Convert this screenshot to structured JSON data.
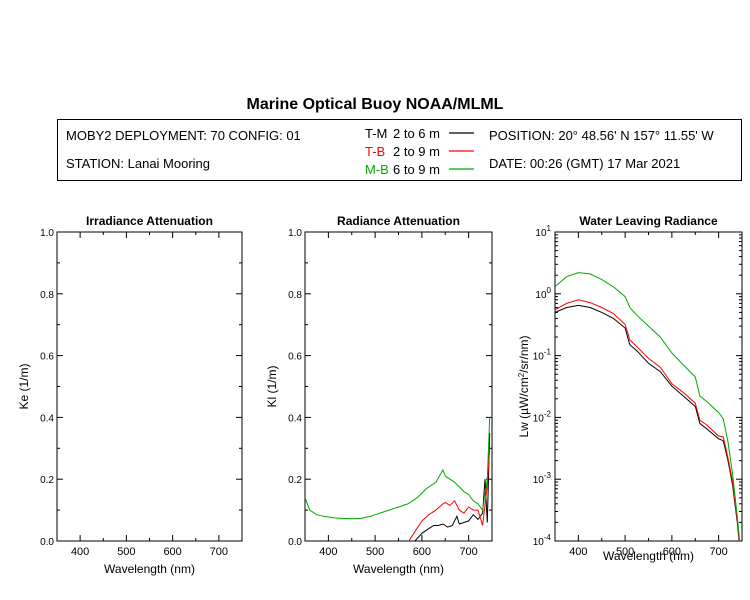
{
  "title": "Marine Optical Buoy NOAA/MLML",
  "info": {
    "deployment": "MOBY2 DEPLOYMENT: 70 CONFIG: 01",
    "station": "STATION: Lanai Mooring",
    "position": "POSITION: 20° 48.56' N   157° 11.55' W",
    "date": "DATE: 00:26 (GMT) 17 Mar 2021"
  },
  "legend": [
    {
      "label": "T-M",
      "range": "2 to 6  m",
      "color": "#000000"
    },
    {
      "label": "T-B",
      "range": "2 to 9  m",
      "color": "#ff0000"
    },
    {
      "label": "M-B",
      "range": "6 to 9  m",
      "color": "#00aa00"
    }
  ],
  "chart_data": [
    {
      "type": "line",
      "title": "Irradiance Attenuation",
      "xlabel": "Wavelength (nm)",
      "ylabel": "Ke  (1/m)",
      "xlim": [
        350,
        750
      ],
      "ylim": [
        0,
        1
      ],
      "xticks": [
        "400",
        "500",
        "600",
        "700"
      ],
      "yticks": [
        "0.0",
        "0.2",
        "0.4",
        "0.6",
        "0.8",
        "1.0"
      ],
      "series": []
    },
    {
      "type": "line",
      "title": "Radiance Attenuation",
      "xlabel": "Wavelength (nm)",
      "ylabel": "Kl  (1/m)",
      "xlim": [
        350,
        750
      ],
      "ylim": [
        0,
        1
      ],
      "xticks": [
        "400",
        "500",
        "600",
        "700"
      ],
      "yticks": [
        "0.0",
        "0.2",
        "0.4",
        "0.6",
        "0.8",
        "1.0"
      ],
      "series": [
        {
          "name": "T-M",
          "color": "#000000",
          "x": [
            585,
            600,
            615,
            625,
            635,
            645,
            650,
            655,
            665,
            675,
            680,
            690,
            700,
            710,
            720,
            730,
            735,
            740,
            745
          ],
          "y": [
            0.0,
            0.025,
            0.04,
            0.05,
            0.05,
            0.055,
            0.05,
            0.045,
            0.05,
            0.08,
            0.055,
            0.06,
            0.065,
            0.085,
            0.07,
            0.09,
            0.2,
            0.06,
            0.35
          ]
        },
        {
          "name": "T-B",
          "color": "#ff0000",
          "x": [
            572,
            585,
            600,
            615,
            630,
            645,
            650,
            660,
            670,
            680,
            690,
            700,
            710,
            720,
            730,
            740,
            745
          ],
          "y": [
            0.0,
            0.03,
            0.065,
            0.085,
            0.1,
            0.12,
            0.125,
            0.115,
            0.13,
            0.1,
            0.09,
            0.11,
            0.1,
            0.1,
            0.05,
            0.18,
            0.3
          ]
        },
        {
          "name": "M-B",
          "color": "#00aa00",
          "x": [
            350,
            360,
            375,
            390,
            410,
            430,
            450,
            470,
            490,
            510,
            530,
            550,
            570,
            590,
            610,
            630,
            645,
            650,
            660,
            670,
            680,
            690,
            700,
            710,
            720,
            730,
            740,
            745
          ],
          "y": [
            0.14,
            0.1,
            0.085,
            0.08,
            0.075,
            0.073,
            0.072,
            0.073,
            0.08,
            0.09,
            0.1,
            0.11,
            0.12,
            0.14,
            0.17,
            0.19,
            0.23,
            0.21,
            0.2,
            0.19,
            0.175,
            0.16,
            0.15,
            0.13,
            0.12,
            0.1,
            0.2,
            0.4
          ]
        }
      ]
    },
    {
      "type": "line",
      "title": "Water Leaving Radiance",
      "xlabel": "Wavelength (nm)",
      "ylabel": "Lw  (µW/cm2/sr/nm)",
      "yscale": "log",
      "xlim": [
        350,
        750
      ],
      "ylim": [
        0.0001,
        10
      ],
      "xticks": [
        "400",
        "500",
        "600",
        "700"
      ],
      "yticks": [
        "10-4",
        "10-3",
        "10-2",
        "10-1",
        "100",
        "101"
      ],
      "series": [
        {
          "name": "T-M",
          "color": "#000000",
          "x": [
            350,
            375,
            400,
            425,
            450,
            475,
            500,
            510,
            525,
            550,
            575,
            590,
            600,
            625,
            650,
            660,
            675,
            700,
            710,
            720,
            730,
            740,
            745
          ],
          "y": [
            0.5,
            0.6,
            0.65,
            0.6,
            0.5,
            0.4,
            0.28,
            0.15,
            0.12,
            0.075,
            0.055,
            0.04,
            0.032,
            0.022,
            0.015,
            0.008,
            0.0065,
            0.0045,
            0.0042,
            0.002,
            0.0008,
            0.0002,
            8e-05
          ]
        },
        {
          "name": "T-B",
          "color": "#ff0000",
          "x": [
            350,
            375,
            400,
            425,
            450,
            475,
            500,
            510,
            525,
            550,
            575,
            590,
            600,
            625,
            650,
            660,
            675,
            700,
            710,
            720,
            730,
            740,
            745
          ],
          "y": [
            0.55,
            0.7,
            0.8,
            0.72,
            0.6,
            0.48,
            0.32,
            0.18,
            0.14,
            0.09,
            0.065,
            0.045,
            0.035,
            0.025,
            0.017,
            0.009,
            0.0075,
            0.005,
            0.0048,
            0.0022,
            0.0009,
            0.00022,
            9e-05
          ]
        },
        {
          "name": "M-B",
          "color": "#00aa00",
          "x": [
            350,
            375,
            400,
            425,
            450,
            475,
            500,
            510,
            525,
            550,
            575,
            590,
            600,
            625,
            650,
            660,
            675,
            700,
            710,
            720,
            730,
            740,
            745
          ],
          "y": [
            1.3,
            1.9,
            2.2,
            2.1,
            1.7,
            1.3,
            0.9,
            0.6,
            0.45,
            0.3,
            0.2,
            0.14,
            0.11,
            0.07,
            0.045,
            0.022,
            0.018,
            0.012,
            0.0095,
            0.004,
            0.0012,
            0.00025,
            0.0001
          ]
        }
      ]
    }
  ]
}
